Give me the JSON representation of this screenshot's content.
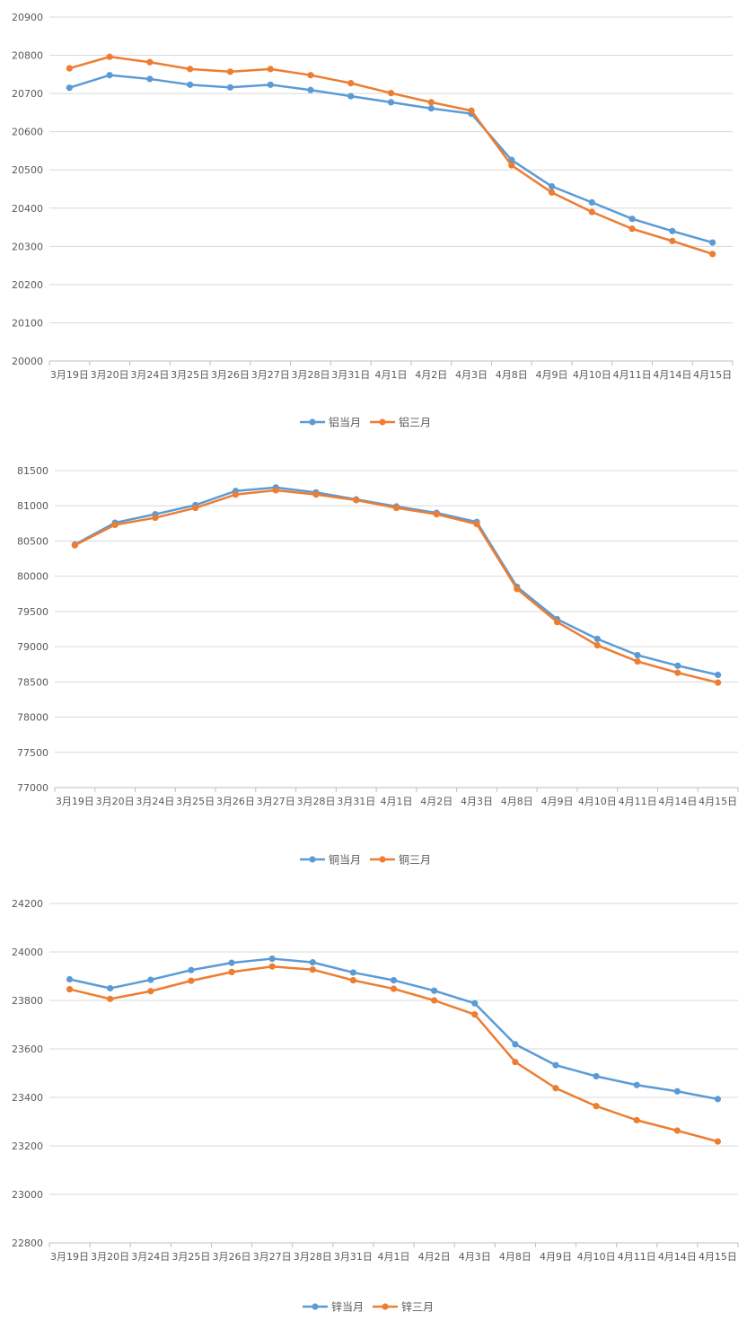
{
  "colors": {
    "series_current": "#5B9BD5",
    "series_three_month": "#ED7D31",
    "gridline": "#D9D9D9",
    "axis": "#BFBFBF",
    "text": "#595959"
  },
  "chart_data": [
    {
      "type": "line",
      "categories": [
        "3月19日",
        "3月20日",
        "3月24日",
        "3月25日",
        "3月26日",
        "3月27日",
        "3月28日",
        "3月31日",
        "4月1日",
        "4月2日",
        "4月3日",
        "4月8日",
        "4月9日",
        "4月10日",
        "4月11日",
        "4月14日",
        "4月15日"
      ],
      "series": [
        {
          "name": "铝当月",
          "color": "#5B9BD5",
          "values": [
            20715,
            20748,
            20738,
            20723,
            20716,
            20723,
            20709,
            20693,
            20677,
            20661,
            20647,
            20526,
            20457,
            20415,
            20372,
            20340,
            20310
          ]
        },
        {
          "name": "铝三月",
          "color": "#ED7D31",
          "values": [
            20766,
            20796,
            20782,
            20764,
            20757,
            20764,
            20748,
            20727,
            20701,
            20677,
            20655,
            20512,
            20441,
            20390,
            20346,
            20314,
            20280
          ]
        }
      ],
      "yticks": [
        20000,
        20100,
        20200,
        20300,
        20400,
        20500,
        20600,
        20700,
        20800,
        20900
      ],
      "ylim": [
        20000,
        20900
      ],
      "grid": true,
      "legend": "bottom"
    },
    {
      "type": "line",
      "categories": [
        "3月19日",
        "3月20日",
        "3月24日",
        "3月25日",
        "3月26日",
        "3月27日",
        "3月28日",
        "3月31日",
        "4月1日",
        "4月2日",
        "4月3日",
        "4月8日",
        "4月9日",
        "4月10日",
        "4月11日",
        "4月14日",
        "4月15日"
      ],
      "series": [
        {
          "name": "铜当月",
          "color": "#5B9BD5",
          "values": [
            80450,
            80760,
            80880,
            81010,
            81210,
            81260,
            81190,
            81090,
            80990,
            80900,
            80770,
            79850,
            79390,
            79110,
            78880,
            78730,
            78600
          ]
        },
        {
          "name": "铜三月",
          "color": "#ED7D31",
          "values": [
            80440,
            80730,
            80830,
            80970,
            81160,
            81220,
            81160,
            81080,
            80970,
            80880,
            80740,
            79820,
            79350,
            79020,
            78790,
            78630,
            78490
          ]
        }
      ],
      "yticks": [
        77000,
        77500,
        78000,
        78500,
        79000,
        79500,
        80000,
        80500,
        81000,
        81500
      ],
      "ylim": [
        77000,
        81500
      ],
      "grid": true,
      "legend": "bottom"
    },
    {
      "type": "line",
      "categories": [
        "3月19日",
        "3月20日",
        "3月24日",
        "3月25日",
        "3月26日",
        "3月27日",
        "3月28日",
        "3月31日",
        "4月1日",
        "4月2日",
        "4月3日",
        "4月8日",
        "4月9日",
        "4月10日",
        "4月11日",
        "4月14日",
        "4月15日"
      ],
      "series": [
        {
          "name": "锌当月",
          "color": "#5B9BD5",
          "values": [
            23887,
            23850,
            23885,
            23925,
            23955,
            23972,
            23957,
            23915,
            23883,
            23840,
            23788,
            23619,
            23533,
            23487,
            23451,
            23425,
            23393
          ]
        },
        {
          "name": "锌三月",
          "color": "#ED7D31",
          "values": [
            23846,
            23806,
            23838,
            23881,
            23917,
            23940,
            23927,
            23883,
            23848,
            23800,
            23742,
            23546,
            23438,
            23364,
            23306,
            23263,
            23218
          ]
        }
      ],
      "yticks": [
        22800,
        23000,
        23200,
        23400,
        23600,
        23800,
        24000,
        24200
      ],
      "ylim": [
        22800,
        24200
      ],
      "grid": true,
      "legend": "bottom"
    }
  ]
}
